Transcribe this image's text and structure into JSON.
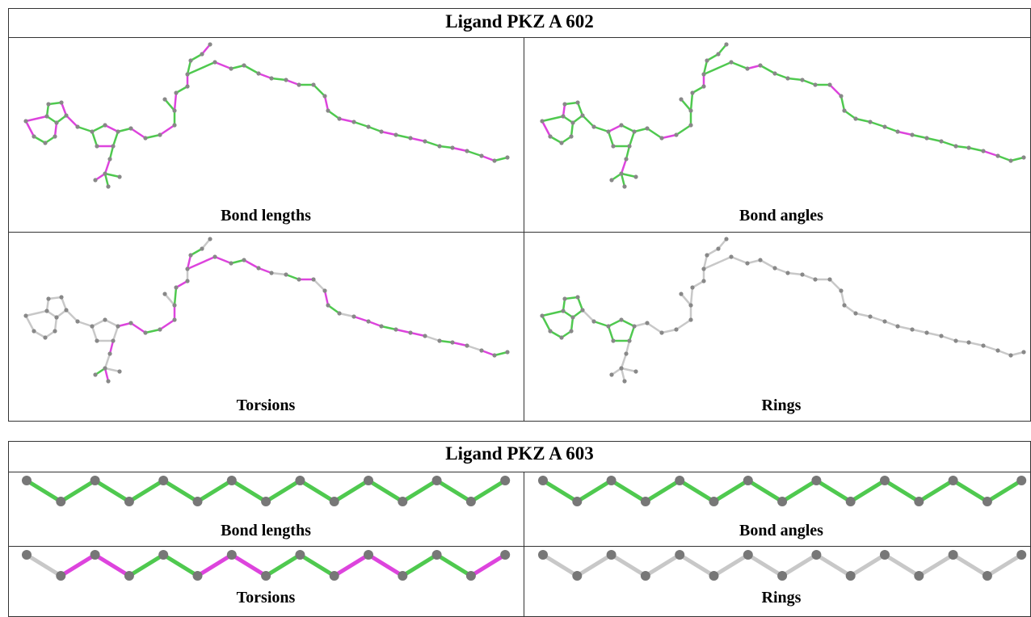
{
  "tables": [
    {
      "title": "Ligand PKZ A 602",
      "cells": [
        "Bond lengths",
        "Bond angles",
        "Torsions",
        "Rings"
      ]
    },
    {
      "title": "Ligand PKZ A 603",
      "cells": [
        "Bond lengths",
        "Bond angles",
        "Torsions",
        "Rings"
      ]
    }
  ]
}
